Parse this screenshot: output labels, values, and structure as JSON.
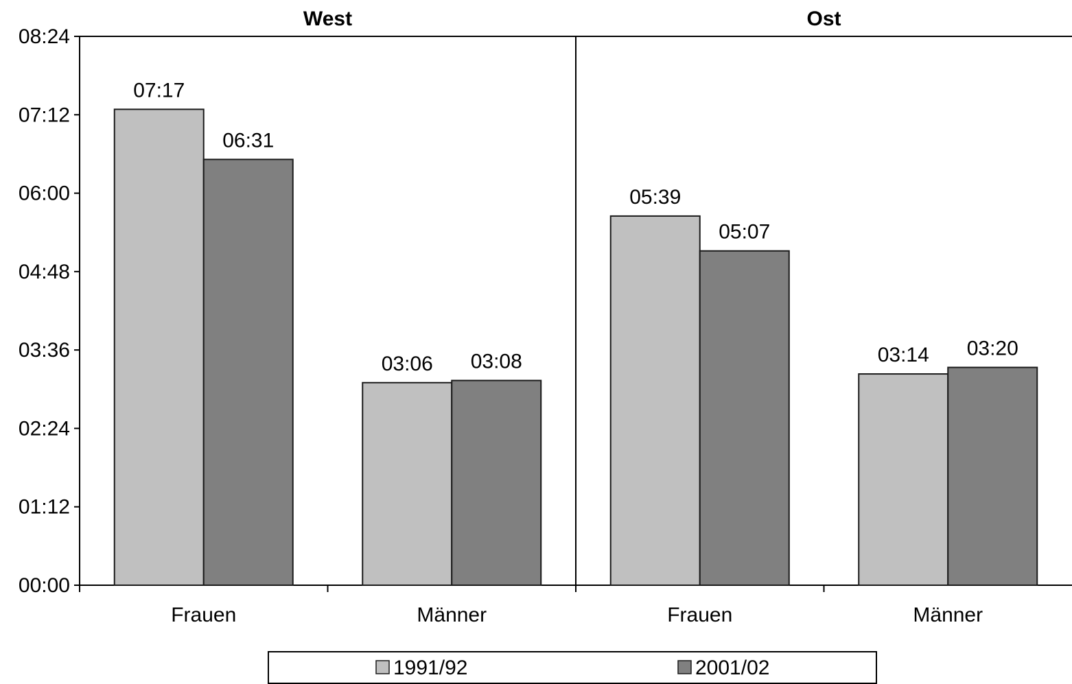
{
  "chart_data": {
    "type": "bar",
    "panels": [
      {
        "title": "West",
        "categories": [
          "Frauen",
          "Männer"
        ],
        "series": [
          {
            "name": "1991/92",
            "values_minutes": [
              437,
              186
            ],
            "labels": [
              "07:17",
              "03:06"
            ]
          },
          {
            "name": "2001/02",
            "values_minutes": [
              391,
              188
            ],
            "labels": [
              "06:31",
              "03:08"
            ]
          }
        ]
      },
      {
        "title": "Ost",
        "categories": [
          "Frauen",
          "Männer"
        ],
        "series": [
          {
            "name": "1991/92",
            "values_minutes": [
              339,
              194
            ],
            "labels": [
              "05:39",
              "03:14"
            ]
          },
          {
            "name": "2001/02",
            "values_minutes": [
              307,
              200
            ],
            "labels": [
              "05:07",
              "03:20"
            ]
          }
        ]
      }
    ],
    "yticks_minutes": [
      0,
      72,
      144,
      216,
      288,
      360,
      432,
      504
    ],
    "ytick_labels": [
      "00:00",
      "01:12",
      "02:24",
      "03:36",
      "04:48",
      "06:00",
      "07:12",
      "08:24"
    ],
    "ylim_minutes": [
      0,
      504
    ],
    "legend": {
      "placement": "bottom",
      "entries": [
        {
          "name": "1991/92",
          "color": "#c0c0c0"
        },
        {
          "name": "2001/02",
          "color": "#808080"
        }
      ]
    },
    "colors": {
      "1991/92": "#c0c0c0",
      "2001/02": "#808080"
    },
    "grid": false
  }
}
